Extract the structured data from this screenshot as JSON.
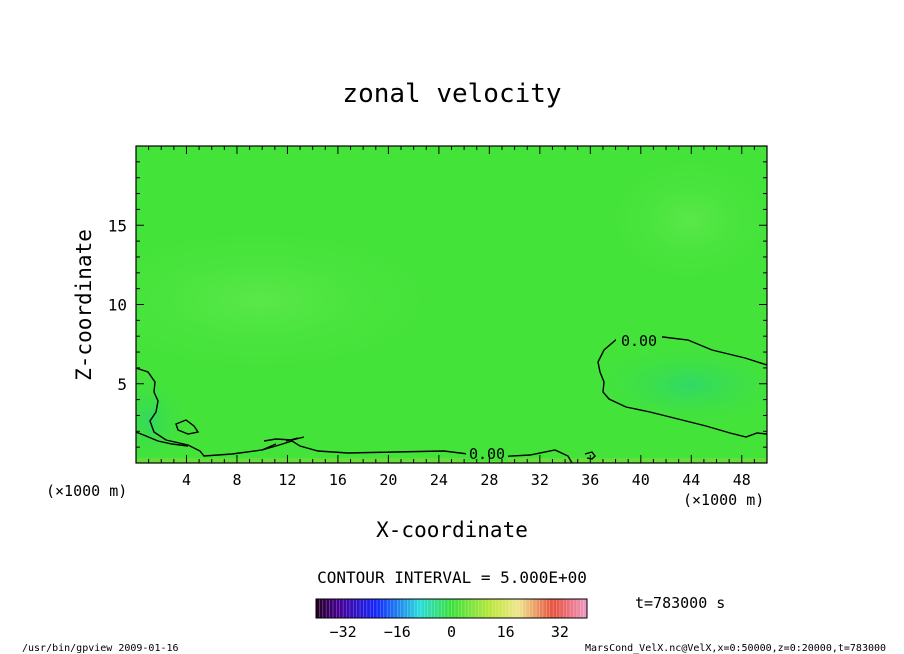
{
  "chart_data": {
    "type": "heatmap",
    "title": "zonal velocity",
    "xlabel": "X-coordinate",
    "ylabel": "Z-coordinate",
    "x_unit": "(×1000 m)",
    "x_unit_right": "(×1000 m)",
    "xlim": [
      0,
      50
    ],
    "ylim": [
      0,
      20
    ],
    "x_ticks": [
      "4",
      "8",
      "12",
      "16",
      "20",
      "24",
      "28",
      "32",
      "36",
      "40",
      "44",
      "48"
    ],
    "y_ticks": [
      "5",
      "10",
      "15"
    ],
    "contour_interval_text": "CONTOUR INTERVAL = 5.000E+00",
    "contour_labels": [
      "0.00",
      "0.00"
    ],
    "colorbar": {
      "ticks": [
        "-32",
        "-16",
        "0",
        "16",
        "32"
      ],
      "range": [
        -40,
        40
      ]
    },
    "time_text": "t=783000 s",
    "field_description": "zonal velocity field near 0 everywhere; slightly negative near x=36-50 at z=1-7 and near x=0-4 at z<5",
    "colors": {
      "field_base": "#44e33a",
      "field_light": "#55e645",
      "field_low": "#2ed86c",
      "contour": "#000000"
    }
  },
  "footer": {
    "left": "/usr/bin/gpview  2009-01-16",
    "right": "MarsCond_VelX.nc@VelX,x=0:50000,z=0:20000,t=783000"
  }
}
